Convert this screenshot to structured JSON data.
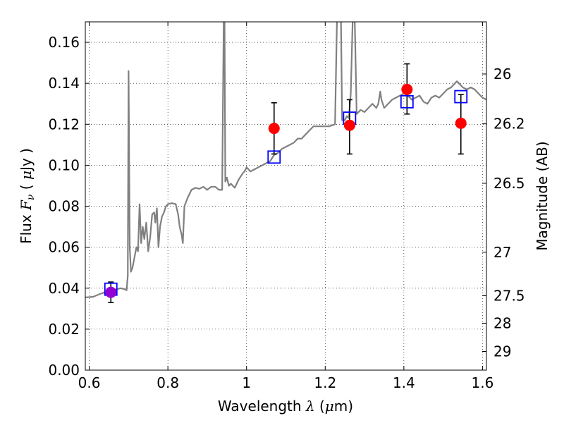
{
  "chart_data": {
    "type": "scatter",
    "title": "",
    "xlabel": {
      "prefix": "Wavelength  ",
      "symbol": "λ",
      "suffix": " (",
      "unit_mu": "μ",
      "unit_rest": "m)"
    },
    "ylabel": {
      "prefix": "Flux  ",
      "symbol": "F",
      "subscript": "ν",
      "paren_open": "  ( ",
      "unit_mu": "μ",
      "unit_rest": "Jy )"
    },
    "ylabel_right": "Magnitude (AB)",
    "xlim": [
      0.59,
      1.61
    ],
    "ylim": [
      0.0,
      0.17
    ],
    "grid": true,
    "x_ticks": [
      0.6,
      0.8,
      1.0,
      1.2,
      1.4,
      1.6
    ],
    "x_tick_labels": [
      "0.6",
      "0.8",
      "1",
      "1.2",
      "1.4",
      "1.6"
    ],
    "y_ticks": [
      0.0,
      0.02,
      0.04,
      0.06,
      0.08,
      0.1,
      0.12,
      0.14,
      0.16
    ],
    "y_tick_labels": [
      "0.00",
      "0.02",
      "0.04",
      "0.06",
      "0.08",
      "0.10",
      "0.12",
      "0.14",
      "0.16"
    ],
    "right_ticks": [
      {
        "mag": 26,
        "label": "26"
      },
      {
        "mag": 26.2,
        "label": "26.2"
      },
      {
        "mag": 26.5,
        "label": "26.5"
      },
      {
        "mag": 27,
        "label": "27"
      },
      {
        "mag": 27.5,
        "label": "27.5"
      },
      {
        "mag": 28,
        "label": "28"
      },
      {
        "mag": 29,
        "label": "29"
      }
    ],
    "series": [
      {
        "kind": "line",
        "color": "#808080",
        "points": [
          [
            0.59,
            0.0355
          ],
          [
            0.61,
            0.0358
          ],
          [
            0.625,
            0.037
          ],
          [
            0.64,
            0.038
          ],
          [
            0.65,
            0.0385
          ],
          [
            0.66,
            0.039
          ],
          [
            0.67,
            0.0395
          ],
          [
            0.68,
            0.04
          ],
          [
            0.69,
            0.0395
          ],
          [
            0.695,
            0.039
          ],
          [
            0.698,
            0.046
          ],
          [
            0.7,
            0.146
          ],
          [
            0.703,
            0.06
          ],
          [
            0.706,
            0.048
          ],
          [
            0.71,
            0.05
          ],
          [
            0.715,
            0.055
          ],
          [
            0.72,
            0.06
          ],
          [
            0.724,
            0.058
          ],
          [
            0.728,
            0.081
          ],
          [
            0.732,
            0.062
          ],
          [
            0.736,
            0.07
          ],
          [
            0.74,
            0.064
          ],
          [
            0.745,
            0.072
          ],
          [
            0.75,
            0.058
          ],
          [
            0.755,
            0.065
          ],
          [
            0.76,
            0.076
          ],
          [
            0.765,
            0.077
          ],
          [
            0.768,
            0.072
          ],
          [
            0.772,
            0.079
          ],
          [
            0.776,
            0.06
          ],
          [
            0.78,
            0.07
          ],
          [
            0.785,
            0.075
          ],
          [
            0.79,
            0.077
          ],
          [
            0.795,
            0.08
          ],
          [
            0.8,
            0.081
          ],
          [
            0.81,
            0.0815
          ],
          [
            0.82,
            0.081
          ],
          [
            0.826,
            0.076
          ],
          [
            0.83,
            0.07
          ],
          [
            0.835,
            0.066
          ],
          [
            0.838,
            0.062
          ],
          [
            0.842,
            0.08
          ],
          [
            0.85,
            0.084
          ],
          [
            0.86,
            0.088
          ],
          [
            0.87,
            0.089
          ],
          [
            0.88,
            0.0885
          ],
          [
            0.89,
            0.0895
          ],
          [
            0.9,
            0.088
          ],
          [
            0.91,
            0.0895
          ],
          [
            0.92,
            0.0895
          ],
          [
            0.93,
            0.088
          ],
          [
            0.938,
            0.088
          ],
          [
            0.942,
            0.172
          ],
          [
            0.944,
            0.172
          ],
          [
            0.946,
            0.092
          ],
          [
            0.95,
            0.094
          ],
          [
            0.955,
            0.09
          ],
          [
            0.96,
            0.091
          ],
          [
            0.97,
            0.089
          ],
          [
            0.98,
            0.093
          ],
          [
            0.99,
            0.096
          ],
          [
            0.995,
            0.097
          ],
          [
            1.0,
            0.099
          ],
          [
            1.01,
            0.097
          ],
          [
            1.02,
            0.098
          ],
          [
            1.03,
            0.099
          ],
          [
            1.04,
            0.1
          ],
          [
            1.05,
            0.101
          ],
          [
            1.06,
            0.102
          ],
          [
            1.07,
            0.105
          ],
          [
            1.08,
            0.106
          ],
          [
            1.09,
            0.108
          ],
          [
            1.1,
            0.109
          ],
          [
            1.11,
            0.11
          ],
          [
            1.12,
            0.111
          ],
          [
            1.13,
            0.113
          ],
          [
            1.14,
            0.113
          ],
          [
            1.15,
            0.115
          ],
          [
            1.16,
            0.117
          ],
          [
            1.17,
            0.119
          ],
          [
            1.18,
            0.119
          ],
          [
            1.19,
            0.119
          ],
          [
            1.2,
            0.119
          ],
          [
            1.21,
            0.119
          ],
          [
            1.225,
            0.12
          ],
          [
            1.23,
            0.172
          ],
          [
            1.24,
            0.172
          ],
          [
            1.243,
            0.122
          ],
          [
            1.25,
            0.122
          ],
          [
            1.255,
            0.124
          ],
          [
            1.26,
            0.123
          ],
          [
            1.265,
            0.135
          ],
          [
            1.27,
            0.172
          ],
          [
            1.275,
            0.172
          ],
          [
            1.28,
            0.125
          ],
          [
            1.29,
            0.127
          ],
          [
            1.3,
            0.126
          ],
          [
            1.31,
            0.128
          ],
          [
            1.32,
            0.13
          ],
          [
            1.33,
            0.128
          ],
          [
            1.335,
            0.13
          ],
          [
            1.34,
            0.136
          ],
          [
            1.343,
            0.132
          ],
          [
            1.35,
            0.128
          ],
          [
            1.36,
            0.13
          ],
          [
            1.37,
            0.132
          ],
          [
            1.38,
            0.133
          ],
          [
            1.39,
            0.134
          ],
          [
            1.4,
            0.135
          ],
          [
            1.41,
            0.134
          ],
          [
            1.42,
            0.132
          ],
          [
            1.43,
            0.133
          ],
          [
            1.44,
            0.134
          ],
          [
            1.45,
            0.131
          ],
          [
            1.46,
            0.13
          ],
          [
            1.47,
            0.133
          ],
          [
            1.48,
            0.134
          ],
          [
            1.49,
            0.133
          ],
          [
            1.5,
            0.135
          ],
          [
            1.51,
            0.137
          ],
          [
            1.52,
            0.138
          ],
          [
            1.53,
            0.14
          ],
          [
            1.535,
            0.141
          ],
          [
            1.54,
            0.14
          ],
          [
            1.55,
            0.138
          ],
          [
            1.56,
            0.137
          ],
          [
            1.57,
            0.138
          ],
          [
            1.58,
            0.137
          ],
          [
            1.59,
            0.135
          ],
          [
            1.6,
            0.133
          ],
          [
            1.61,
            0.132
          ]
        ]
      },
      {
        "kind": "errorbar",
        "color": "#000000",
        "points": [
          {
            "x": 0.655,
            "ylow": 0.033,
            "yhigh": 0.043
          },
          {
            "x": 1.07,
            "ylow": 0.1055,
            "yhigh": 0.1305
          },
          {
            "x": 1.262,
            "ylow": 0.1055,
            "yhigh": 0.132
          },
          {
            "x": 1.408,
            "ylow": 0.125,
            "yhigh": 0.1495
          },
          {
            "x": 1.545,
            "ylow": 0.1055,
            "yhigh": 0.1345
          }
        ]
      },
      {
        "kind": "open-square",
        "color": "#0000ff",
        "points": [
          [
            0.655,
            0.0395
          ],
          [
            1.07,
            0.104
          ],
          [
            1.262,
            0.123
          ],
          [
            1.408,
            0.131
          ],
          [
            1.545,
            0.1335
          ]
        ]
      },
      {
        "kind": "filled-circle",
        "color": "#ff0000",
        "points": [
          [
            1.07,
            0.118
          ],
          [
            1.262,
            0.1195
          ],
          [
            1.408,
            0.137
          ],
          [
            1.545,
            0.1205
          ]
        ]
      },
      {
        "kind": "filled-circle",
        "color": "#9400d3",
        "points": [
          [
            0.655,
            0.038
          ]
        ]
      }
    ]
  }
}
